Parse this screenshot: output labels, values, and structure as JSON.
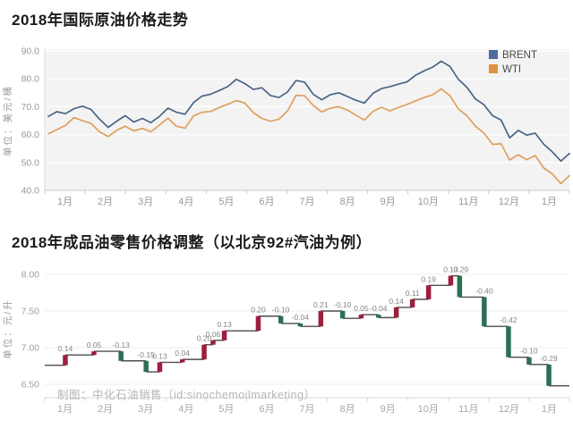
{
  "page": {
    "background": "#ffffff"
  },
  "chart_data": [
    {
      "type": "line",
      "title": "2018年国际原油价格走势",
      "unit_label": "单位：美元/桶",
      "ylim": [
        40,
        90
      ],
      "grid": true,
      "plot_background": "#f3f3f3",
      "gridline_color": "#ffffff",
      "axis_text_color": "#999999",
      "legend_position": "top-right",
      "y_ticks": [
        {
          "v": 90,
          "label": "90.0"
        },
        {
          "v": 80,
          "label": "80.0"
        },
        {
          "v": 70,
          "label": "70.0"
        },
        {
          "v": 60,
          "label": "60.0"
        },
        {
          "v": 50,
          "label": "50.0"
        },
        {
          "v": 40,
          "label": "40.0"
        }
      ],
      "x_tick_labels": [
        "1月",
        "2月",
        "3月",
        "4月",
        "5月",
        "6月",
        "7月",
        "8月",
        "9月",
        "10月",
        "11月",
        "12月",
        "1月"
      ],
      "series": [
        {
          "name": "BRENT",
          "color": "#4a6585",
          "legend_color": "#4d6c9c",
          "values": [
            66.5,
            68.2,
            67.5,
            69.3,
            70.2,
            69.0,
            65.5,
            62.6,
            64.8,
            66.8,
            64.5,
            65.8,
            64.3,
            66.5,
            69.5,
            68.0,
            67.3,
            71.5,
            73.8,
            74.5,
            75.8,
            77.2,
            79.8,
            78.3,
            76.2,
            76.8,
            74.0,
            73.3,
            75.3,
            79.4,
            78.8,
            74.5,
            72.5,
            74.3,
            75.0,
            73.7,
            72.3,
            71.3,
            74.8,
            76.5,
            77.2,
            78.1,
            78.9,
            81.3,
            82.9,
            84.2,
            86.3,
            84.5,
            79.8,
            77.0,
            72.8,
            70.7,
            66.8,
            65.2,
            58.8,
            61.5,
            59.8,
            60.5,
            56.5,
            53.8,
            50.5,
            53.2
          ]
        },
        {
          "name": "WTI",
          "color": "#dfa05c",
          "legend_color": "#e0913e",
          "values": [
            60.3,
            61.8,
            63.3,
            66.1,
            65.0,
            64.0,
            61.0,
            59.3,
            61.5,
            63.0,
            61.3,
            62.2,
            61.0,
            63.4,
            65.9,
            63.0,
            62.3,
            66.7,
            68.0,
            68.3,
            69.7,
            70.9,
            72.2,
            71.3,
            67.9,
            65.8,
            64.8,
            65.5,
            68.5,
            74.1,
            73.9,
            70.5,
            68.1,
            69.5,
            70.0,
            68.8,
            67.0,
            65.2,
            68.3,
            69.8,
            68.5,
            69.8,
            70.8,
            72.1,
            73.3,
            74.3,
            76.4,
            74.0,
            69.2,
            66.8,
            63.0,
            60.5,
            56.5,
            56.7,
            50.9,
            52.8,
            51.0,
            52.5,
            48.0,
            45.9,
            42.4,
            45.3
          ]
        }
      ]
    },
    {
      "type": "step",
      "title": "2018年成品油零售价格调整（以北京92#汽油为例）",
      "unit_label": "单位：元/升",
      "credit": "制图：中化石油销售（id:sinochemoilmarketing）",
      "start_price": 6.76,
      "up_color": "#9c1f3d",
      "down_color": "#2c6e52",
      "connector_color": "#4d4d4d",
      "label_color": "#858585",
      "gridline_color": "#ececec",
      "axis_text_color": "#a0a0a0",
      "y_ticks": [
        {
          "v": 8.0,
          "label": "8.00"
        },
        {
          "v": 7.5,
          "label": "7.50"
        },
        {
          "v": 7.0,
          "label": "7.00"
        },
        {
          "v": 6.5,
          "label": "6.50"
        }
      ],
      "x_tick_labels": [
        "1月",
        "2月",
        "3月",
        "4月",
        "5月",
        "6月",
        "7月",
        "8月",
        "9月",
        "10月",
        "11月",
        "12月",
        "1月"
      ],
      "adjustments": [
        {
          "x": 0.51,
          "delta": 0.14,
          "label": "0.14"
        },
        {
          "x": 1.22,
          "delta": 0.05,
          "label": "0.05"
        },
        {
          "x": 1.89,
          "delta": -0.13,
          "label": "-0.13"
        },
        {
          "x": 2.51,
          "delta": -0.15,
          "label": "-0.15"
        },
        {
          "x": 2.85,
          "delta": 0.13,
          "label": "0.13"
        },
        {
          "x": 3.41,
          "delta": 0.04,
          "label": "0.04"
        },
        {
          "x": 3.95,
          "delta": 0.2,
          "label": "0.20"
        },
        {
          "x": 4.17,
          "delta": 0.06,
          "label": "0.06"
        },
        {
          "x": 4.45,
          "delta": 0.13,
          "label": "0.13"
        },
        {
          "x": 5.29,
          "delta": 0.2,
          "label": "0.20"
        },
        {
          "x": 5.85,
          "delta": -0.1,
          "label": "-0.10"
        },
        {
          "x": 6.33,
          "delta": -0.04,
          "label": "-0.04"
        },
        {
          "x": 6.84,
          "delta": 0.21,
          "label": "0.21"
        },
        {
          "x": 7.38,
          "delta": -0.1,
          "label": "-0.10"
        },
        {
          "x": 7.84,
          "delta": 0.05,
          "label": "0.05"
        },
        {
          "x": 8.27,
          "delta": -0.04,
          "label": "-0.04"
        },
        {
          "x": 8.71,
          "delta": 0.14,
          "label": "0.14"
        },
        {
          "x": 9.11,
          "delta": 0.11,
          "label": "0.11"
        },
        {
          "x": 9.51,
          "delta": 0.19,
          "label": "0.19"
        },
        {
          "x": 10.06,
          "delta": 0.13,
          "label": "0.13"
        },
        {
          "x": 10.28,
          "delta": -0.29,
          "label": "-0.29"
        },
        {
          "x": 10.89,
          "delta": -0.4,
          "label": "-0.40"
        },
        {
          "x": 11.49,
          "delta": -0.42,
          "label": "-0.42"
        },
        {
          "x": 12.0,
          "delta": -0.1,
          "label": "-0.10"
        },
        {
          "x": 12.49,
          "delta": -0.29,
          "label": "-0.29"
        }
      ]
    }
  ]
}
